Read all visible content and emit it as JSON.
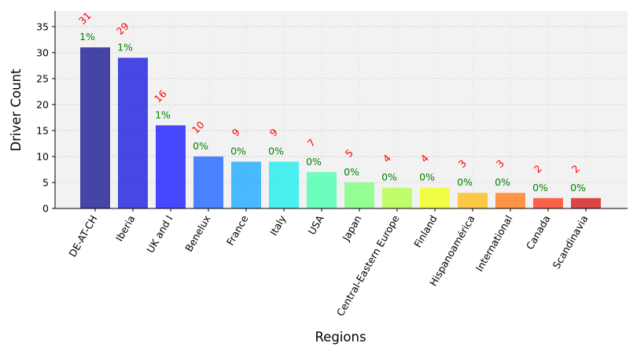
{
  "chart_data": {
    "type": "bar",
    "title": "",
    "xlabel": "Regions",
    "ylabel": "Driver Count",
    "ylim": [
      0,
      38
    ],
    "yticks": [
      0,
      5,
      10,
      15,
      20,
      25,
      30,
      35
    ],
    "grid": true,
    "categories": [
      "DE-AT-CH",
      "Iberia",
      "UK and I",
      "Benelux",
      "France",
      "Italy",
      "USA",
      "Japan",
      "Central-Eastern Europe",
      "Finland",
      "Hispanoamérica",
      "International",
      "Canada",
      "Scandinavia"
    ],
    "values": [
      31,
      29,
      16,
      10,
      9,
      9,
      7,
      5,
      4,
      4,
      3,
      3,
      2,
      2
    ],
    "count_labels": [
      "31",
      "29",
      "16",
      "10",
      "9",
      "9",
      "7",
      "5",
      "4",
      "4",
      "3",
      "3",
      "2",
      "2"
    ],
    "percent_labels": [
      "1%",
      "1%",
      "1%",
      "0%",
      "0%",
      "0%",
      "0%",
      "0%",
      "0%",
      "0%",
      "0%",
      "0%",
      "0%",
      "0%"
    ],
    "colors": [
      "#191993",
      "#1c1cde",
      "#1c1cff",
      "#1e66ff",
      "#1ea9ff",
      "#1eecee",
      "#4bffb1",
      "#7cff7b",
      "#b1ff48",
      "#eeff18",
      "#ffbd19",
      "#ff7c1c",
      "#ff3b1e",
      "#d31a1a"
    ],
    "count_label_color": "#ff0000",
    "percent_label_color": "#008000",
    "plot_background": "#f2f2f2"
  }
}
